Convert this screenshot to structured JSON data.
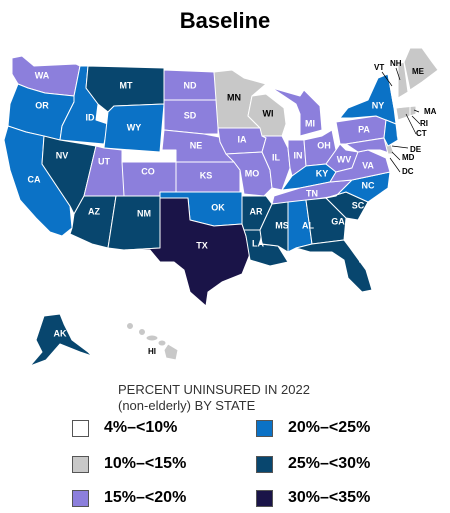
{
  "title": "Baseline",
  "legend": {
    "title_line1": "PERCENT UNINSURED IN 2022",
    "title_line2": "(non-elderly) BY STATE",
    "items": [
      {
        "label": "4%–<10%",
        "color": "#ffffff"
      },
      {
        "label": "10%–<15%",
        "color": "#c8c8c8"
      },
      {
        "label": "15%–<20%",
        "color": "#8c7fdc"
      },
      {
        "label": "20%–<25%",
        "color": "#0b72c6"
      },
      {
        "label": "25%–<30%",
        "color": "#08466e"
      },
      {
        "label": "30%–<35%",
        "color": "#1a1448"
      }
    ]
  },
  "states": {
    "WA": "15%–<20%",
    "OR": "20%–<25%",
    "CA": "20%–<25%",
    "ID": "20%–<25%",
    "NV": "25%–<30%",
    "MT": "25%–<30%",
    "WY": "20%–<25%",
    "UT": "15%–<20%",
    "AZ": "25%–<30%",
    "CO": "15%–<20%",
    "NM": "25%–<30%",
    "ND": "15%–<20%",
    "SD": "15%–<20%",
    "NE": "15%–<20%",
    "KS": "15%–<20%",
    "OK": "20%–<25%",
    "TX": "30%–<35%",
    "MN": "10%–<15%",
    "IA": "15%–<20%",
    "MO": "15%–<20%",
    "AR": "25%–<30%",
    "LA": "25%–<30%",
    "WI": "10%–<15%",
    "IL": "15%–<20%",
    "MI": "15%–<20%",
    "IN": "15%–<20%",
    "OH": "15%–<20%",
    "KY": "20%–<25%",
    "TN": "15%–<20%",
    "MS": "25%–<30%",
    "AL": "20%–<25%",
    "GA": "25%–<30%",
    "FL": "25%–<30%",
    "SC": "25%–<30%",
    "NC": "20%–<25%",
    "VA": "15%–<20%",
    "WV": "15%–<20%",
    "PA": "15%–<20%",
    "NY": "20%–<25%",
    "VT": "4%–<10%",
    "NH": "10%–<15%",
    "ME": "10%–<15%",
    "MA": "4%–<10%",
    "RI": "10%–<15%",
    "CT": "10%–<15%",
    "NJ": "20%–<25%",
    "DE": "10%–<15%",
    "MD": "15%–<20%",
    "DC": "4%–<10%",
    "AK": "25%–<30%",
    "HI": "10%–<15%"
  }
}
